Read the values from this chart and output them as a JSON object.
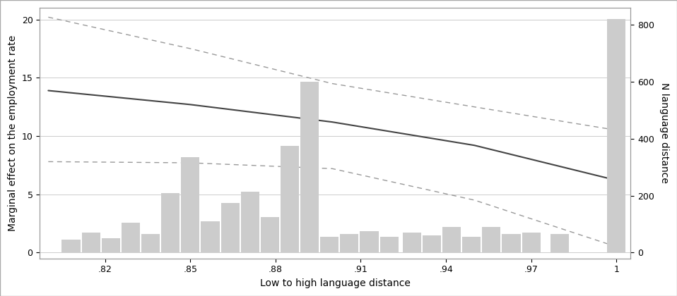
{
  "xlabel": "Low to high language distance",
  "ylabel_left": "Marginal effect on the employment rate",
  "ylabel_right": "N language distance",
  "xlim": [
    0.797,
    1.005
  ],
  "ylim_left": [
    -0.5,
    21
  ],
  "ylim_right": [
    -20.4,
    860
  ],
  "xticks": [
    0.82,
    0.85,
    0.88,
    0.91,
    0.94,
    0.97,
    1.0
  ],
  "xtick_labels": [
    ".82",
    ".85",
    ".88",
    ".91",
    ".94",
    ".97",
    "1"
  ],
  "yticks_left": [
    0,
    5,
    10,
    15,
    20
  ],
  "yticks_right": [
    0,
    200,
    400,
    600,
    800
  ],
  "line_x": [
    0.8,
    0.85,
    0.9,
    0.95,
    1.0
  ],
  "line_y_main": [
    13.9,
    12.7,
    11.2,
    9.2,
    6.2
  ],
  "line_y_upper": [
    20.2,
    17.5,
    14.5,
    12.5,
    10.5
  ],
  "line_y_lower": [
    7.8,
    7.7,
    7.2,
    4.5,
    0.5
  ],
  "bar_centers": [
    0.808,
    0.815,
    0.822,
    0.829,
    0.836,
    0.843,
    0.85,
    0.857,
    0.864,
    0.871,
    0.878,
    0.885,
    0.892,
    0.899,
    0.906,
    0.913,
    0.92,
    0.928,
    0.935,
    0.942,
    0.949,
    0.956,
    0.963,
    0.97,
    0.98,
    1.0
  ],
  "bar_heights_n": [
    45,
    70,
    50,
    105,
    65,
    210,
    335,
    110,
    175,
    215,
    125,
    375,
    600,
    55,
    65,
    75,
    55,
    70,
    60,
    90,
    55,
    90,
    65,
    70,
    65,
    820
  ],
  "bar_color": "#cccccc",
  "line_color_main": "#444444",
  "line_color_ci": "#999999",
  "bar_width": 0.0065,
  "grid_color": "#cccccc",
  "background_color": "#ffffff",
  "spine_color": "#999999",
  "font_size": 9,
  "label_font_size": 10
}
